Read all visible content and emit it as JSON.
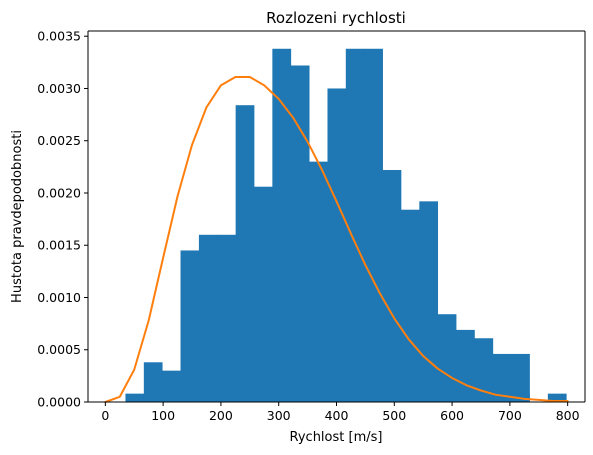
{
  "chart_data": {
    "type": "bar",
    "title": "Rozlozeni rychlosti",
    "xlabel": "Rychlost [m/s]",
    "ylabel": "Hustota pravdepodobnosti",
    "xlim": [
      -30,
      830
    ],
    "ylim": [
      0,
      0.00355
    ],
    "xticks": [
      0,
      100,
      200,
      300,
      400,
      500,
      600,
      700,
      800
    ],
    "xtick_labels": [
      "0",
      "100",
      "200",
      "300",
      "400",
      "500",
      "600",
      "700",
      "800"
    ],
    "yticks": [
      0,
      0.0005,
      0.001,
      0.0015,
      0.002,
      0.0025,
      0.003,
      0.0035
    ],
    "ytick_labels": [
      "0.0000",
      "0.0005",
      "0.0010",
      "0.0015",
      "0.0020",
      "0.0025",
      "0.0030",
      "0.0035"
    ],
    "grid": false,
    "colors": {
      "bars": "#1f77b4",
      "curve": "#ff7f0e"
    },
    "histogram": {
      "bin_edges": [
        34.8,
        66.6,
        98.3,
        130.1,
        161.9,
        193.7,
        225.5,
        257.2,
        289.0,
        320.8,
        352.6,
        384.4,
        416.1,
        447.9,
        479.7,
        511.5,
        543.3,
        575.0,
        606.8,
        638.6,
        670.4,
        702.2,
        733.9,
        765.7,
        797.5
      ],
      "densities": [
        8e-05,
        0.00038,
        0.0003,
        0.00145,
        0.0016,
        0.0016,
        0.00284,
        0.00206,
        0.00338,
        0.00322,
        0.0023,
        0.003,
        0.00338,
        0.00338,
        0.00222,
        0.00184,
        0.00192,
        0.00084,
        0.00069,
        0.00061,
        0.00046,
        0.00046
      ],
      "extra_bins": [
        {
          "x0": 606.8,
          "x1": 670.4,
          "value": 8e-05
        },
        {
          "x0": 702.2,
          "x1": 733.9,
          "value": 8e-05
        },
        {
          "x0": 765.7,
          "x1": 797.5,
          "value": 8e-05
        }
      ]
    },
    "curve": {
      "x": [
        0,
        25,
        50,
        75,
        100,
        125,
        150,
        175,
        200,
        225,
        250,
        275,
        300,
        325,
        350,
        375,
        400,
        425,
        450,
        475,
        500,
        525,
        550,
        575,
        600,
        625,
        650,
        675,
        700,
        725,
        750,
        775,
        800
      ],
      "y": [
        0.0,
        5e-05,
        0.00031,
        0.00078,
        0.00138,
        0.00197,
        0.00246,
        0.00282,
        0.00303,
        0.00311,
        0.00311,
        0.00303,
        0.0029,
        0.00272,
        0.00249,
        0.00222,
        0.00192,
        0.00161,
        0.00131,
        0.00104,
        0.0008,
        0.0006,
        0.00044,
        0.00032,
        0.00023,
        0.00016,
        0.00011,
        7e-05,
        5e-05,
        3e-05,
        2e-05,
        1e-05,
        1e-05
      ]
    }
  }
}
